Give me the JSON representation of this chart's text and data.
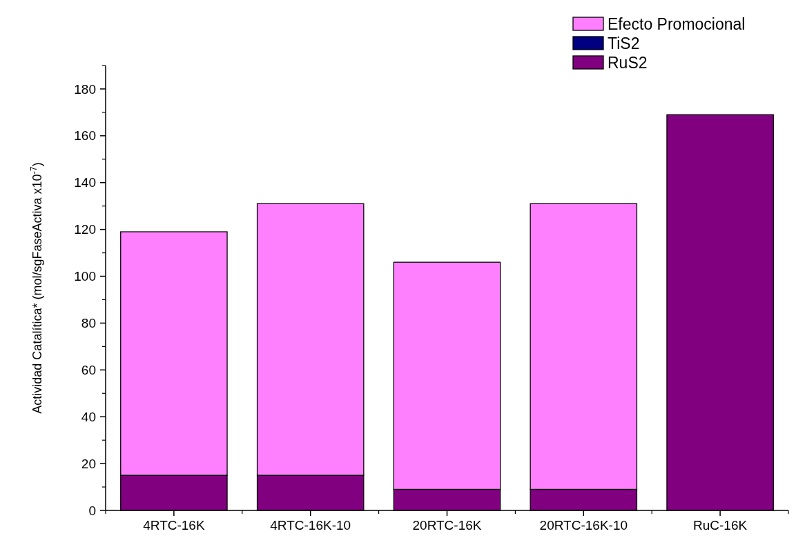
{
  "chart_data": {
    "type": "bar",
    "stacked": true,
    "ylabel": "Actividad Catalítica* (mol/sgFaseActiva x10$^{-7}$)",
    "categories": [
      "4RTC-16K",
      "4RTC-16K-10",
      "20RTC-16K",
      "20RTC-16K-10",
      "RuC-16K"
    ],
    "series": [
      {
        "name": "RuS2",
        "color": "#800080",
        "values": [
          15,
          15,
          9,
          9,
          169
        ]
      },
      {
        "name": "TiS2",
        "color": "#000080",
        "values": [
          0,
          0,
          0,
          0,
          0
        ]
      },
      {
        "name": "Efecto Promocional",
        "color": "#ff80ff",
        "values": [
          104,
          116,
          97,
          122,
          0
        ]
      }
    ],
    "ylim": [
      0,
      190
    ],
    "yticks": [
      0,
      20,
      40,
      60,
      80,
      100,
      120,
      140,
      160,
      180
    ],
    "grid": false,
    "legend": "top right"
  }
}
